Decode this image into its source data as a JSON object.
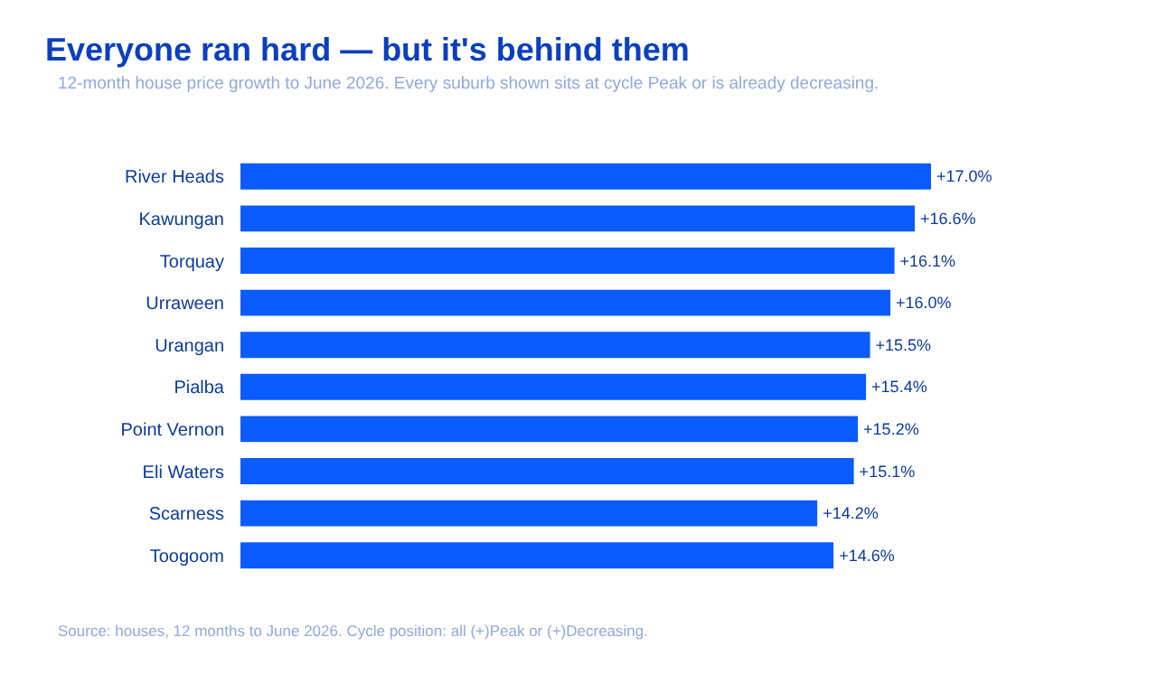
{
  "chart_data": {
    "type": "bar",
    "orientation": "horizontal",
    "tick_labels": "y",
    "title": "Everyone ran hard — but it's behind them",
    "subtitle": "12-month house price growth to June 2026. Every suburb shown sits at cycle Peak or is already decreasing.",
    "categories": [
      "River Heads",
      "Kawungan",
      "Torquay",
      "Urraween",
      "Urangan",
      "Pialba",
      "Point Vernon",
      "Eli Waters",
      "Scarness",
      "Toogoom"
    ],
    "values": [
      17.0,
      16.6,
      16.1,
      16.0,
      15.5,
      15.4,
      15.2,
      15.1,
      14.2,
      14.6
    ],
    "value_labels": [
      "+17.0%",
      "+16.6%",
      "+16.1%",
      "+16.0%",
      "+15.5%",
      "+15.4%",
      "+15.2%",
      "+15.1%",
      "+14.2%",
      "+14.6%"
    ],
    "color": "#0a5cff",
    "annotations": [
      "Source: houses, 12 months to June 2026. Cycle position: all (+)Peak or (+)Decreasing."
    ]
  }
}
